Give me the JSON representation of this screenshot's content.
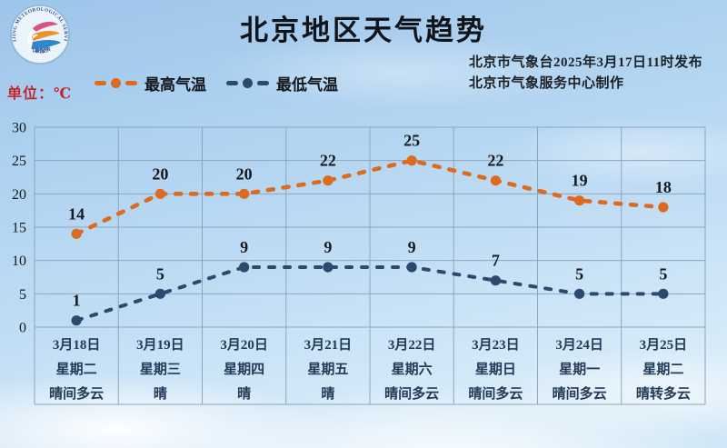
{
  "page": {
    "title": "北京地区天气趋势",
    "publisher_line1": "北京市气象台2025年3月17日11时发布",
    "publisher_line2": "北京市气象服务中心制作",
    "unit_label": "单位：℃",
    "logo": {
      "ring_text_top": "BEIJING METEOROLOGICAL SERVICE",
      "ring_text_bottom": "气象服务"
    }
  },
  "legend": {
    "items": [
      {
        "label": "最高气温",
        "color": "#dc6b20"
      },
      {
        "label": "最低气温",
        "color": "#2c4a6e"
      }
    ]
  },
  "chart_data": {
    "type": "line",
    "title": "北京地区天气趋势",
    "categories": [
      "3月18日",
      "3月19日",
      "3月20日",
      "3月21日",
      "3月22日",
      "3月23日",
      "3月24日",
      "3月25日"
    ],
    "weekdays": [
      "星期二",
      "星期三",
      "星期四",
      "星期五",
      "星期六",
      "星期日",
      "星期一",
      "星期二"
    ],
    "weather": [
      "晴间多云",
      "晴",
      "晴",
      "晴",
      "晴间多云",
      "晴间多云",
      "晴间多云",
      "晴转多云"
    ],
    "series": [
      {
        "name": "最高气温",
        "color": "#dc6b20",
        "values": [
          14,
          20,
          20,
          22,
          25,
          22,
          19,
          18
        ]
      },
      {
        "name": "最低气温",
        "color": "#2c4a6e",
        "values": [
          1,
          5,
          9,
          9,
          9,
          7,
          5,
          5
        ]
      }
    ],
    "ylabel": "单位：℃",
    "ylim": [
      0,
      30
    ],
    "yticks": [
      0,
      5,
      10,
      15,
      20,
      25,
      30
    ],
    "grid": true,
    "line_style": "dashed",
    "legend_position": "top-left"
  },
  "colors": {
    "grid": "#8ba7bd",
    "tick_text": "#15191d",
    "value_label_text": "#15191d",
    "x_label_text": "#233a58"
  }
}
